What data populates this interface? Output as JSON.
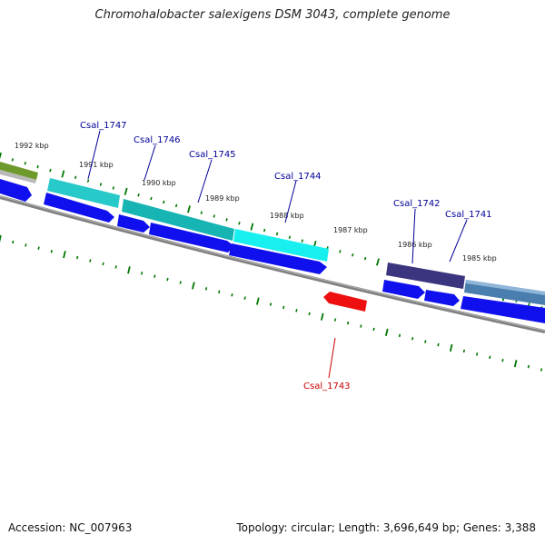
{
  "title": "Chromohalobacter salexigens DSM 3043, complete genome",
  "footer": {
    "accession": "Accession: NC_007963",
    "summary": "Topology: circular; Length: 3,696,649 bp; Genes: 3,388"
  },
  "colors": {
    "cds": "#1010ee",
    "rna_red": "#ee1010",
    "backbone": "#777777",
    "tick": "#007700",
    "label_blue": "#000099",
    "label_red": "#cc0000"
  },
  "scale_labels": [
    "1992 kbp",
    "1991 kbp",
    "1990 kbp",
    "1989 kbp",
    "1988 kbp",
    "1987 kbp",
    "1986 kbp",
    "1985 kbp"
  ],
  "gene_labels": [
    {
      "text": "Csal_1747",
      "color": "#000099"
    },
    {
      "text": "Csal_1746",
      "color": "#000099"
    },
    {
      "text": "Csal_1745",
      "color": "#000099"
    },
    {
      "text": "Csal_1744",
      "color": "#000099"
    },
    {
      "text": "Csal_1742",
      "color": "#000099"
    },
    {
      "text": "Csal_1741",
      "color": "#000099"
    },
    {
      "text": "Csal_1743",
      "color": "#cc0000"
    }
  ]
}
